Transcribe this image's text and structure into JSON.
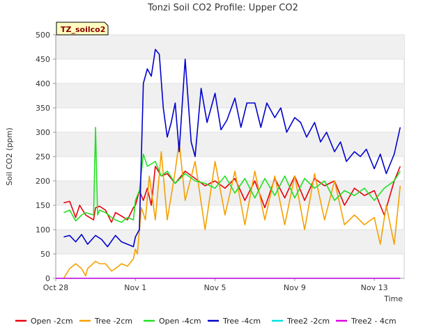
{
  "chart_data": {
    "type": "line",
    "title": "Tonzi Soil CO2 Profile: Upper CO2",
    "xlabel": "Time",
    "ylabel": "Soil CO2 (ppm)",
    "badge": "TZ_soilco2",
    "xlim": [
      0,
      17.5
    ],
    "ylim": [
      0,
      500
    ],
    "x_ticks": [
      {
        "day": 0,
        "label": "Oct 28"
      },
      {
        "day": 4,
        "label": "Nov 1"
      },
      {
        "day": 8,
        "label": "Nov 5"
      },
      {
        "day": 12,
        "label": "Nov 9"
      },
      {
        "day": 16,
        "label": "Nov 13"
      }
    ],
    "y_ticks": [
      0,
      50,
      100,
      150,
      200,
      250,
      300,
      350,
      400,
      450,
      500
    ],
    "grid": "horizontal bands",
    "legend_position": "bottom",
    "series": [
      {
        "name": "Open -2cm",
        "color": "#e8000b",
        "x": [
          0.4,
          0.7,
          1.0,
          1.2,
          1.5,
          1.9,
          2.0,
          2.2,
          2.5,
          2.8,
          3.0,
          3.3,
          3.6,
          3.9,
          4.0,
          4.2,
          4.4,
          4.6,
          4.8,
          5.0,
          5.3,
          5.6,
          6.0,
          6.5,
          7.0,
          7.5,
          8.0,
          8.5,
          9.0,
          9.5,
          10.0,
          10.5,
          11.0,
          11.5,
          12.0,
          12.5,
          13.0,
          13.5,
          14.0,
          14.5,
          15.0,
          15.5,
          16.0,
          16.5,
          17.0,
          17.3
        ],
        "y": [
          155,
          158,
          125,
          150,
          130,
          120,
          145,
          148,
          140,
          115,
          135,
          128,
          120,
          145,
          150,
          180,
          160,
          185,
          150,
          230,
          210,
          215,
          195,
          220,
          205,
          190,
          200,
          185,
          205,
          160,
          200,
          145,
          205,
          165,
          210,
          160,
          205,
          190,
          200,
          150,
          185,
          170,
          180,
          130,
          200,
          230
        ]
      },
      {
        "name": "Tree -2cm",
        "color": "#f5a000",
        "x": [
          0.4,
          0.7,
          1.0,
          1.3,
          1.5,
          1.6,
          2.0,
          2.2,
          2.5,
          2.8,
          3.0,
          3.3,
          3.6,
          3.9,
          4.0,
          4.1,
          4.3,
          4.5,
          4.7,
          5.0,
          5.3,
          5.6,
          6.0,
          6.2,
          6.5,
          7.0,
          7.5,
          8.0,
          8.5,
          9.0,
          9.5,
          10.0,
          10.5,
          11.0,
          11.5,
          12.0,
          12.5,
          13.0,
          13.5,
          14.0,
          14.5,
          15.0,
          15.5,
          16.0,
          16.3,
          16.6,
          17.0,
          17.3
        ],
        "y": [
          0,
          20,
          30,
          20,
          5,
          20,
          35,
          30,
          30,
          15,
          20,
          30,
          25,
          40,
          60,
          50,
          145,
          120,
          210,
          120,
          260,
          120,
          220,
          280,
          160,
          240,
          100,
          240,
          130,
          220,
          110,
          220,
          120,
          210,
          110,
          210,
          100,
          215,
          120,
          200,
          110,
          130,
          110,
          125,
          70,
          150,
          70,
          190
        ]
      },
      {
        "name": "Open -4cm",
        "color": "#22e022",
        "x": [
          0.4,
          0.7,
          1.0,
          1.3,
          1.5,
          1.9,
          2.0,
          2.1,
          2.2,
          2.5,
          2.8,
          3.0,
          3.3,
          3.6,
          3.9,
          4.0,
          4.2,
          4.4,
          4.6,
          4.8,
          5.0,
          5.3,
          5.6,
          6.0,
          6.5,
          7.0,
          7.5,
          8.0,
          8.5,
          9.0,
          9.5,
          10.0,
          10.5,
          11.0,
          11.5,
          12.0,
          12.5,
          13.0,
          13.5,
          14.0,
          14.5,
          15.0,
          15.5,
          16.0,
          16.5,
          17.0,
          17.3
        ],
        "y": [
          135,
          140,
          118,
          130,
          135,
          130,
          310,
          130,
          140,
          135,
          125,
          120,
          115,
          125,
          120,
          160,
          180,
          255,
          230,
          235,
          240,
          210,
          220,
          195,
          215,
          200,
          195,
          185,
          210,
          175,
          205,
          165,
          205,
          170,
          210,
          165,
          205,
          185,
          200,
          160,
          180,
          170,
          185,
          160,
          185,
          200,
          220
        ]
      },
      {
        "name": "Tree -4cm",
        "color": "#0000cc",
        "x": [
          0.4,
          0.7,
          1.0,
          1.3,
          1.6,
          2.0,
          2.3,
          2.6,
          3.0,
          3.3,
          3.6,
          3.9,
          4.0,
          4.2,
          4.4,
          4.6,
          4.8,
          5.0,
          5.2,
          5.4,
          5.6,
          5.8,
          6.0,
          6.2,
          6.5,
          6.8,
          7.0,
          7.3,
          7.6,
          8.0,
          8.3,
          8.6,
          9.0,
          9.3,
          9.6,
          10.0,
          10.3,
          10.6,
          11.0,
          11.3,
          11.6,
          12.0,
          12.3,
          12.6,
          13.0,
          13.3,
          13.6,
          14.0,
          14.3,
          14.6,
          15.0,
          15.3,
          15.6,
          16.0,
          16.3,
          16.6,
          17.0,
          17.3
        ],
        "y": [
          85,
          88,
          75,
          90,
          70,
          88,
          80,
          65,
          88,
          75,
          70,
          65,
          85,
          100,
          400,
          430,
          415,
          470,
          460,
          350,
          290,
          320,
          360,
          260,
          450,
          280,
          250,
          390,
          320,
          380,
          305,
          325,
          370,
          310,
          360,
          360,
          310,
          360,
          330,
          350,
          300,
          330,
          320,
          290,
          320,
          280,
          300,
          260,
          280,
          240,
          260,
          250,
          265,
          225,
          255,
          215,
          255,
          310
        ]
      },
      {
        "name": "Tree2 -2cm",
        "color": "#00e0e0",
        "x": [
          0,
          17.3
        ],
        "y": [
          0,
          0
        ]
      },
      {
        "name": "Tree2 - 4cm",
        "color": "#e000e0",
        "x": [
          0,
          17.3
        ],
        "y": [
          0,
          0
        ]
      }
    ]
  }
}
